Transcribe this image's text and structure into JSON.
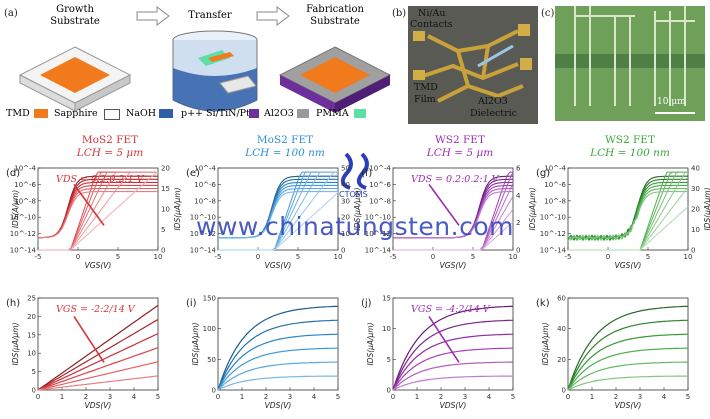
{
  "row1": {
    "a": {
      "label": "(a)",
      "steps": [
        "Growth\nSubstrate",
        "Transfer",
        "Fabrication\nSubstrate"
      ],
      "legend": [
        {
          "name": "TMD",
          "color": "#f07a1c"
        },
        {
          "name": "Sapphire",
          "color": "#ffffff"
        },
        {
          "name": "NaOH",
          "color": "#2f5fa8"
        },
        {
          "name": "p++ Si/TiN/Pt",
          "color": "#6c2f9c"
        },
        {
          "name": "Al2O3",
          "color": "#9a9a9a"
        },
        {
          "name": "PMMA",
          "color": "#5de0a8"
        }
      ]
    },
    "b": {
      "label": "(b)",
      "texts": [
        "Ni/Au",
        "Contacts",
        "TMD",
        "Film",
        "Al2O3",
        "Dielectric"
      ]
    },
    "c": {
      "label": "(c)",
      "scalebar": "10 μm"
    }
  },
  "col_titles": [
    {
      "title": "MoS2 FET",
      "sub": "LCH = 5 μm",
      "color": "#d9343a"
    },
    {
      "title": "MoS2 FET",
      "sub": "LCH = 100 nm",
      "color": "#2d8fd6"
    },
    {
      "title": "WS2 FET",
      "sub": "LCH = 5 μm",
      "color": "#9b2fb0"
    },
    {
      "title": "WS2 FET",
      "sub": "LCH = 100 nm",
      "color": "#3aa63a"
    }
  ],
  "watermark": "www.chinatungsten.com",
  "logo_text": "CTOMS",
  "chart_data": [
    {
      "panel": "(d)",
      "type": "line",
      "annotation": "VDS = 0.2:0.2:1 V",
      "xlabel": "VGS(V)",
      "ylabel_left": "IDS(A/μm)",
      "ylabel_right": "IDS(μA/μm)",
      "x_ticks": [
        "-5",
        "0",
        "5",
        "10"
      ],
      "y_ticks_left": [
        "10^-4",
        "10^-6",
        "10^-8",
        "10^-10",
        "10^-12",
        "10^-14"
      ],
      "y_ticks_right": [
        "20",
        "15",
        "10",
        "5",
        "0"
      ]
    },
    {
      "panel": "(e)",
      "type": "line",
      "xlabel": "VGS(V)",
      "ylabel_right": "IDS(μA/μm)",
      "x_ticks": [
        "-5",
        "0",
        "5",
        "10"
      ],
      "y_ticks_left": [
        "10^-4",
        "10^-6",
        "10^-8",
        "10^-10",
        "10^-12",
        "10^-14"
      ],
      "y_ticks_right": [
        "50",
        "40",
        "30",
        "20",
        "10",
        "0"
      ]
    },
    {
      "panel": "(f)",
      "type": "line",
      "annotation": "VDS = 0.2:0.2:1 V",
      "xlabel": "VGS(V)",
      "ylabel_right": "IDS(μA/μm)",
      "x_ticks": [
        "-5",
        "0",
        "5",
        "10"
      ],
      "y_ticks_left": [
        "10^-4",
        "10^-6",
        "10^-8",
        "10^-10",
        "10^-12",
        "10^-14"
      ],
      "y_ticks_right": [
        "6",
        "4",
        "2",
        "0"
      ]
    },
    {
      "panel": "(g)",
      "type": "line",
      "xlabel": "VGS(V)",
      "ylabel_right": "IDS(μA/μm)",
      "x_ticks": [
        "-5",
        "0",
        "5",
        "10"
      ],
      "y_ticks_left": [
        "10^-4",
        "10^-6",
        "10^-8",
        "10^-10",
        "10^-12",
        "10^-14"
      ],
      "y_ticks_right": [
        "40",
        "30",
        "20",
        "10",
        "0"
      ]
    },
    {
      "panel": "(h)",
      "type": "line",
      "annotation": "VGS = -2:2/14 V",
      "xlabel": "VDS(V)",
      "ylabel": "IDS(μA/μm)",
      "x_ticks": [
        "0",
        "1",
        "2",
        "3",
        "4",
        "5"
      ],
      "y_ticks": [
        "25",
        "20",
        "15",
        "10",
        "5",
        "0"
      ]
    },
    {
      "panel": "(i)",
      "type": "line",
      "xlabel": "VDS(V)",
      "ylabel": "IDS(μA/μm)",
      "x_ticks": [
        "0",
        "1",
        "2",
        "3",
        "4",
        "5"
      ],
      "y_ticks": [
        "150",
        "100",
        "50",
        "0"
      ]
    },
    {
      "panel": "(j)",
      "type": "line",
      "annotation": "VGS = -4:2/14 V",
      "xlabel": "VDS(V)",
      "ylabel": "IDS(μA/μm)",
      "x_ticks": [
        "0",
        "1",
        "2",
        "3",
        "4",
        "5"
      ],
      "y_ticks": [
        "15",
        "10",
        "5",
        "0"
      ]
    },
    {
      "panel": "(k)",
      "type": "line",
      "xlabel": "VDS(V)",
      "ylabel": "IDS(μA/μm)",
      "x_ticks": [
        "0",
        "1",
        "2",
        "3",
        "4",
        "5"
      ],
      "y_ticks": [
        "60",
        "40",
        "20",
        "0"
      ]
    }
  ]
}
